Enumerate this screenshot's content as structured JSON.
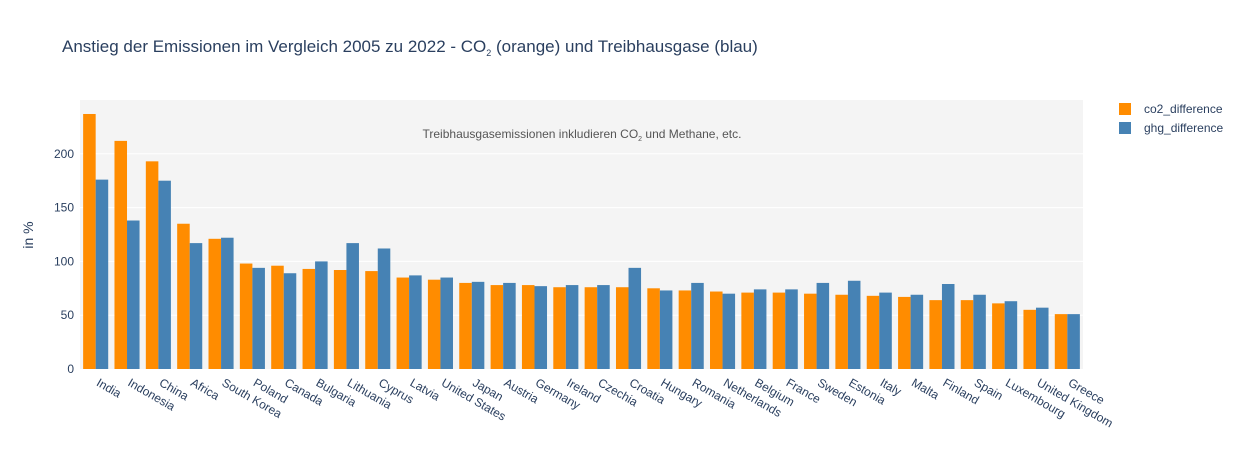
{
  "chart_data": {
    "type": "bar",
    "title": "Anstieg der Emissionen im Vergleich 2005 zu 2022 - CO",
    "title_sub": "2",
    "title_rest": " (orange) und Treibhausgase (blau)",
    "annotation": "Treibhausgasemissionen inkludieren CO",
    "annotation_sub": "2",
    "annotation_rest": " und Methane, etc.",
    "ylabel": "in %",
    "xlabel": "",
    "ylim": [
      0,
      250
    ],
    "yticks": [
      0,
      50,
      100,
      150,
      200
    ],
    "grid": true,
    "legend_position": "top-right",
    "categories": [
      "India",
      "Indonesia",
      "China",
      "Africa",
      "South Korea",
      "Poland",
      "Canada",
      "Bulgaria",
      "Lithuania",
      "Cyprus",
      "Latvia",
      "United States",
      "Japan",
      "Austria",
      "Germany",
      "Ireland",
      "Czechia",
      "Croatia",
      "Hungary",
      "Romania",
      "Netherlands",
      "Belgium",
      "France",
      "Sweden",
      "Estonia",
      "Italy",
      "Malta",
      "Finland",
      "Spain",
      "Luxembourg",
      "United Kingdom",
      "Greece"
    ],
    "series": [
      {
        "name": "co2_difference",
        "color": "#ff8c00",
        "values": [
          237,
          212,
          193,
          135,
          121,
          98,
          96,
          93,
          92,
          91,
          85,
          83,
          80,
          78,
          78,
          76,
          76,
          76,
          75,
          73,
          72,
          71,
          71,
          70,
          69,
          68,
          67,
          64,
          64,
          61,
          55,
          51
        ]
      },
      {
        "name": "ghg_difference",
        "color": "#4682b4",
        "values": [
          176,
          138,
          175,
          117,
          122,
          94,
          89,
          100,
          117,
          112,
          87,
          85,
          81,
          80,
          77,
          78,
          78,
          94,
          73,
          80,
          70,
          74,
          74,
          80,
          82,
          71,
          69,
          79,
          69,
          63,
          57,
          51
        ]
      }
    ]
  }
}
